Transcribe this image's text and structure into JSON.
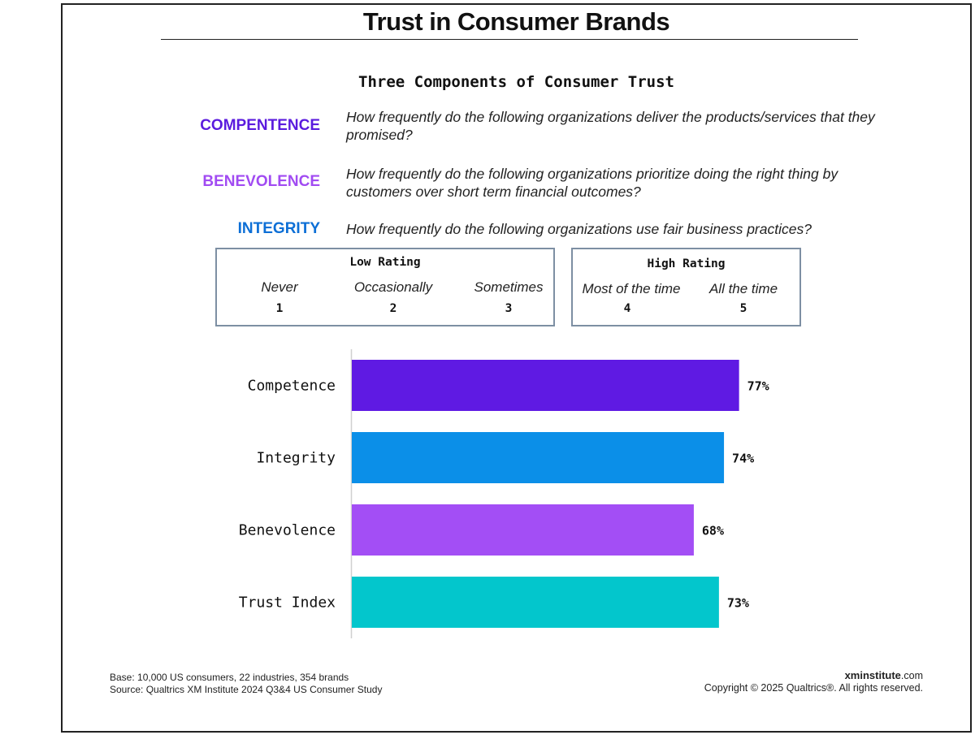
{
  "title": "Trust in Consumer Brands",
  "subtitle": "Three Components of Consumer Trust",
  "components": [
    {
      "label": "COMPENTENCE",
      "color": "#5b1bde",
      "question": "How frequently do the following organizations deliver the products/services that they promised?"
    },
    {
      "label": "BENEVOLENCE",
      "color": "#a14bf2",
      "question": "How frequently do the following organizations prioritize doing the right thing by customers over short term financial outcomes?"
    },
    {
      "label": "INTEGRITY",
      "color": "#0d6fd6",
      "question": "How frequently do the following organizations use fair business practices?"
    }
  ],
  "scale": {
    "low": {
      "heading": "Low Rating",
      "items": [
        {
          "word": "Never",
          "num": "1"
        },
        {
          "word": "Occasionally",
          "num": "2"
        },
        {
          "word": "Sometimes",
          "num": "3"
        }
      ]
    },
    "high": {
      "heading": "High Rating",
      "items": [
        {
          "word": "Most of the time",
          "num": "4"
        },
        {
          "word": "All the time",
          "num": "5"
        }
      ]
    }
  },
  "chart_data": {
    "type": "bar",
    "orientation": "horizontal",
    "categories": [
      "Competence",
      "Integrity",
      "Benevolence",
      "Trust Index"
    ],
    "values": [
      77,
      74,
      68,
      73
    ],
    "value_labels": [
      "77%",
      "74%",
      "68%",
      "73%"
    ],
    "colors": [
      "#5f1ae3",
      "#0b8fe8",
      "#a34ef5",
      "#03c6cc"
    ],
    "xlim": [
      0,
      100
    ],
    "grid": false,
    "legend": "none"
  },
  "footer": {
    "base": "Base: 10,000 US consumers, 22 industries, 354 brands",
    "source": "Source: Qualtrics XM Institute 2024 Q3&4 US Consumer Study",
    "brand_bold": "xminstitute",
    "brand_suffix": ".com",
    "copyright": "Copyright © 2025 Qualtrics®. All rights reserved."
  }
}
